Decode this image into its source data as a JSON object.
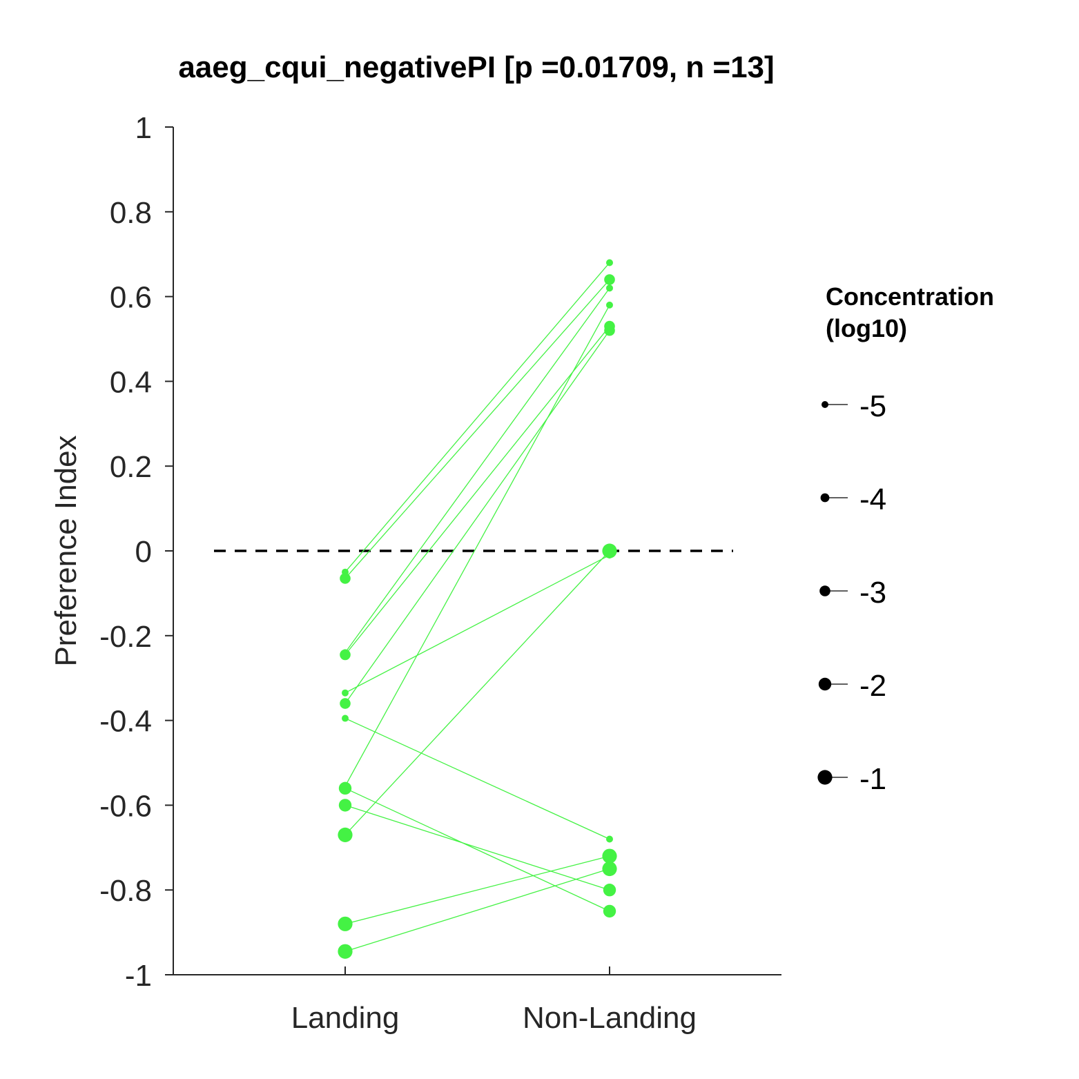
{
  "chart_data": {
    "type": "scatter",
    "title": "aaeg_cqui_negativePI [p =0.01709, n =13]",
    "ylabel": "Preference Index",
    "xlabel": "",
    "categories": [
      "Landing",
      "Non-Landing"
    ],
    "ylim": [
      -1,
      1
    ],
    "yticks": [
      1,
      0.8,
      0.6,
      0.4,
      0.2,
      0,
      -0.2,
      -0.4,
      -0.6,
      -0.8,
      -1
    ],
    "ytick_labels": [
      "1",
      "0.8",
      "0.6",
      "0.4",
      "0.2",
      "0",
      "-0.2",
      "-0.4",
      "-0.6",
      "-0.8",
      "-1"
    ],
    "reference_line": {
      "y": 0,
      "style": "dashed",
      "color": "#000000"
    },
    "series_color": "#44f244",
    "legend": {
      "title_lines": [
        "Concentration",
        "(log10)"
      ],
      "entries": [
        "-5",
        "-4",
        "-3",
        "-2",
        "-1"
      ],
      "entry_concentrations": [
        -5,
        -4,
        -3,
        -2,
        -1
      ],
      "placement": "right"
    },
    "pairs": [
      {
        "landing": -0.05,
        "non_landing": 0.68,
        "concentration": -5
      },
      {
        "landing": -0.065,
        "non_landing": 0.64,
        "concentration": -3
      },
      {
        "landing": -0.24,
        "non_landing": 0.62,
        "concentration": -5
      },
      {
        "landing": -0.245,
        "non_landing": 0.53,
        "concentration": -3
      },
      {
        "landing": -0.335,
        "non_landing": -0.01,
        "concentration": -5
      },
      {
        "landing": -0.36,
        "non_landing": 0.52,
        "concentration": -3
      },
      {
        "landing": -0.395,
        "non_landing": -0.68,
        "concentration": -5
      },
      {
        "landing": -0.555,
        "non_landing": 0.58,
        "concentration": -5
      },
      {
        "landing": -0.56,
        "non_landing": -0.85,
        "concentration": -2
      },
      {
        "landing": -0.6,
        "non_landing": -0.8,
        "concentration": -2
      },
      {
        "landing": -0.67,
        "non_landing": 0.0,
        "concentration": -1
      },
      {
        "landing": -0.88,
        "non_landing": -0.72,
        "concentration": -1
      },
      {
        "landing": -0.945,
        "non_landing": -0.75,
        "concentration": -1
      }
    ]
  }
}
